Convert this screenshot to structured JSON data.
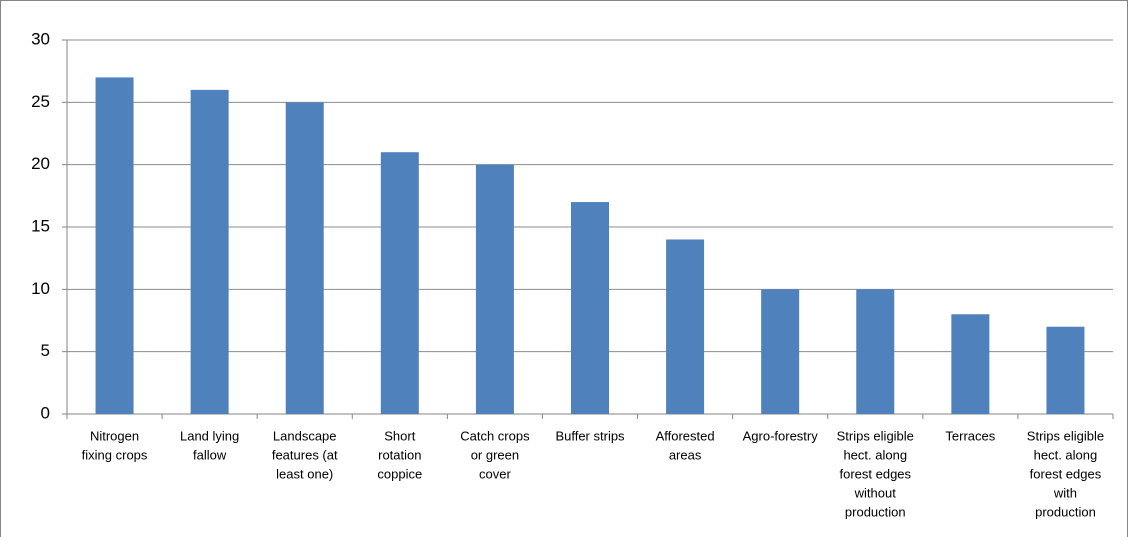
{
  "chart_data": {
    "type": "bar",
    "categories": [
      [
        "Nitrogen",
        "fixing crops"
      ],
      [
        "Land lying",
        "fallow"
      ],
      [
        "Landscape",
        "features (at",
        "least one)"
      ],
      [
        "Short",
        "rotation",
        "coppice"
      ],
      [
        "Catch crops",
        "or green",
        "cover"
      ],
      [
        "Buffer strips"
      ],
      [
        "Afforested",
        "areas"
      ],
      [
        "Agro-forestry"
      ],
      [
        "Strips eligible",
        "hect. along",
        "forest edges",
        "without",
        "production"
      ],
      [
        "Terraces"
      ],
      [
        "Strips eligible",
        "hect. along",
        "forest edges",
        "with",
        "production"
      ]
    ],
    "values": [
      27,
      26,
      25,
      21,
      20,
      17,
      14,
      10,
      10,
      8,
      7
    ],
    "color": "#4f81bd",
    "ylim": [
      0,
      30
    ],
    "yticks": [
      0,
      5,
      10,
      15,
      20,
      25,
      30
    ],
    "grid": true
  }
}
